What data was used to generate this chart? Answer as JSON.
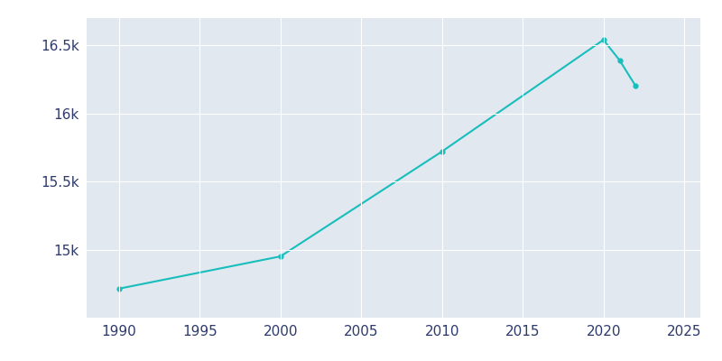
{
  "years": [
    1990,
    2000,
    2010,
    2020,
    2021,
    2022
  ],
  "population": [
    14713,
    14950,
    15720,
    16540,
    16390,
    16200
  ],
  "line_color": "#17BEBB",
  "marker_color": "#17BEBB",
  "plot_bg_color": "#E2E8F0",
  "fig_bg_color": "#FFFFFF",
  "grid_color": "#FFFFFF",
  "text_color": "#2D3A6B",
  "xlim": [
    1988,
    2026
  ],
  "ylim": [
    14500,
    16700
  ],
  "xticks": [
    1990,
    1995,
    2000,
    2005,
    2010,
    2015,
    2020,
    2025
  ],
  "yticks": [
    15000,
    15500,
    16000,
    16500
  ],
  "ytick_labels": [
    "15k",
    "15.5k",
    "16k",
    "16.5k"
  ]
}
